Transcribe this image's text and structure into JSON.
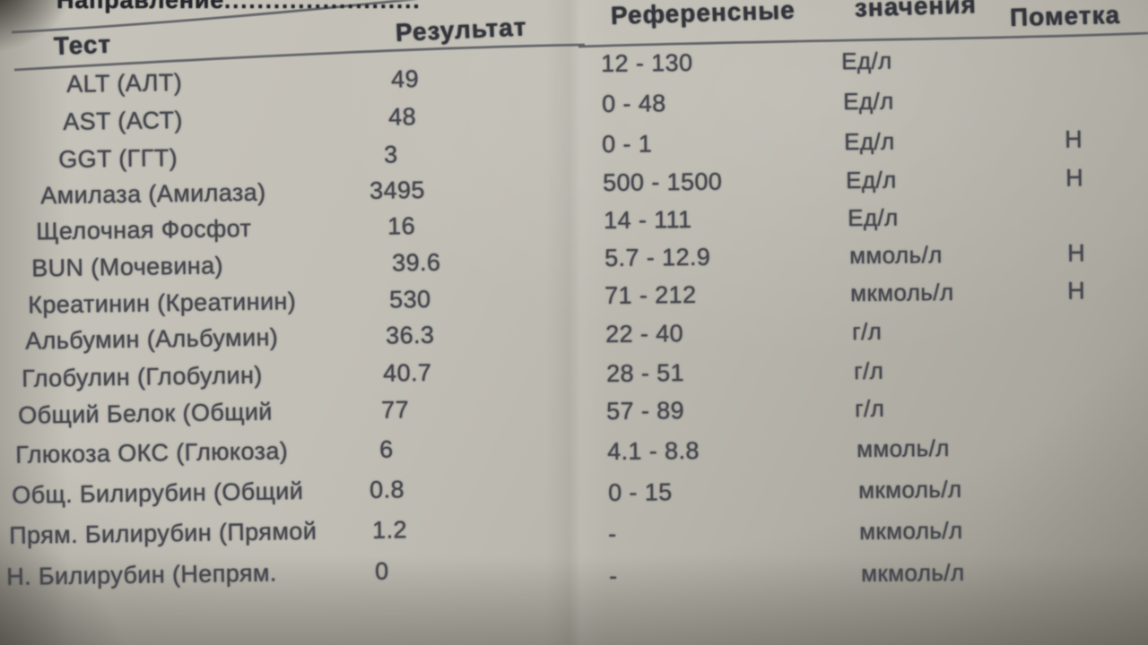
{
  "document": {
    "referral_label": "Направление",
    "referral_dots": "........................",
    "columns": {
      "test": "Тест",
      "result": "Результат",
      "reference_word1": "Референсные",
      "reference_word2": "значения",
      "mark": "Пометка"
    },
    "rows": [
      {
        "test": "ALT (АЛТ)",
        "result": "49",
        "reference": "12 - 130",
        "unit": "Ед/л",
        "mark": ""
      },
      {
        "test": "AST (АСТ)",
        "result": "48",
        "reference": "0 - 48",
        "unit": "Ед/л",
        "mark": ""
      },
      {
        "test": "GGT (ГГТ)",
        "result": "3",
        "reference": "0 - 1",
        "unit": "Ед/л",
        "mark": "H"
      },
      {
        "test": "Амилаза (Амилаза)",
        "result": "3495",
        "reference": "500 - 1500",
        "unit": "Ед/л",
        "mark": "H"
      },
      {
        "test": "Щелочная Фосфот",
        "result": "16",
        "reference": "14 - 111",
        "unit": "Ед/л",
        "mark": ""
      },
      {
        "test": "BUN (Мочевина)",
        "result": "39.6",
        "reference": "5.7 - 12.9",
        "unit": "ммоль/л",
        "mark": "H"
      },
      {
        "test": "Креатинин (Креатинин)",
        "result": "530",
        "reference": "71 - 212",
        "unit": "мкмоль/л",
        "mark": "H"
      },
      {
        "test": "Альбумин (Альбумин)",
        "result": "36.3",
        "reference": "22 - 40",
        "unit": "г/л",
        "mark": ""
      },
      {
        "test": "Глобулин (Глобулин)",
        "result": "40.7",
        "reference": "28 - 51",
        "unit": "г/л",
        "mark": ""
      },
      {
        "test": "Общий Белок (Общий",
        "result": "77",
        "reference": "57 - 89",
        "unit": "г/л",
        "mark": ""
      },
      {
        "test": "Глюкоза ОКС (Глюкоза)",
        "result": "6",
        "reference": "4.1 - 8.8",
        "unit": "ммоль/л",
        "mark": ""
      },
      {
        "test": "Общ. Билирубин (Общий",
        "result": "0.8",
        "reference": "0 - 15",
        "unit": "мкмоль/л",
        "mark": ""
      },
      {
        "test": "Прям. Билирубин (Прямой",
        "result": "1.2",
        "reference": "-",
        "unit": "мкмоль/л",
        "mark": ""
      },
      {
        "test": "Н. Билирубин (Непрям.",
        "result": "0",
        "reference": "-",
        "unit": "мкмоль/л",
        "mark": ""
      }
    ]
  },
  "colors": {
    "paper": "#bab7ae",
    "ink": "#45474e",
    "header_ink": "#33353c",
    "rule_line": "#54565c"
  }
}
